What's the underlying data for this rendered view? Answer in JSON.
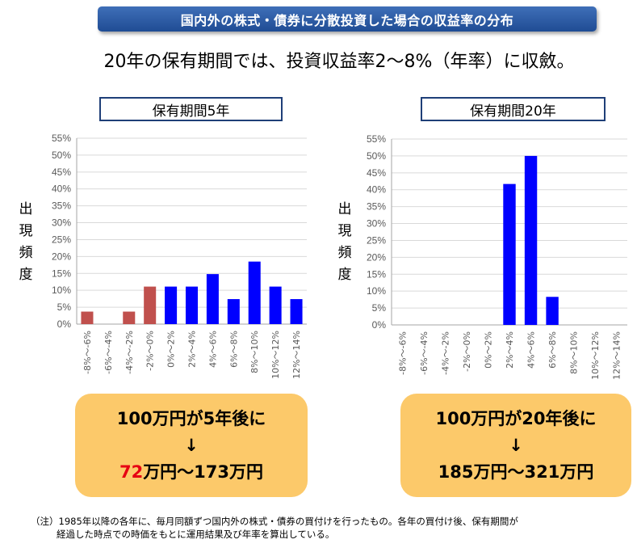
{
  "banner": "国内外の株式・債券に分散投資した場合の収益率の分布",
  "subtitle": "20年の保有期間では、投資収益率2～8%（年率）に収斂。",
  "ylabel_chars": [
    "出",
    "現",
    "頻",
    "度"
  ],
  "panels": {
    "left": {
      "title": "保有期間5年",
      "result_line1": "100万円が5年後に",
      "arrow": "↓",
      "result_low": "72",
      "result_rest": "万円～173万円"
    },
    "right": {
      "title": "保有期間20年",
      "result_line1": "100万円が20年後に",
      "arrow": "↓",
      "result_line3": "185万円～321万円"
    }
  },
  "footnote": {
    "line1": "（注）1985年以降の各年に、毎月同額ずつ国内外の株式・債券の買付けを行ったもの。各年の買付け後、保有期間が",
    "line2": "経過した時点での時価をもとに運用結果及び年率を算出している。"
  },
  "colors": {
    "negative": "#c0504d",
    "positive": "#0000ff",
    "grid": "#d9d9d9",
    "result_box": "#fcc96a"
  },
  "chart_data": [
    {
      "type": "bar",
      "title": "保有期間5年",
      "ylabel": "出現頻度",
      "categories": [
        "-8%～-6%",
        "-6%～-4%",
        "-4%～-2%",
        "-2%～0%",
        "0%～2%",
        "2%～4%",
        "4%～6%",
        "6%～8%",
        "8%～10%",
        "10%～12%",
        "12%～14%"
      ],
      "values": [
        3.7,
        0,
        3.7,
        11.1,
        11.1,
        11.1,
        14.8,
        7.4,
        18.5,
        11.1,
        7.4
      ],
      "bar_colors": [
        "#c0504d",
        "#c0504d",
        "#c0504d",
        "#c0504d",
        "#0000ff",
        "#0000ff",
        "#0000ff",
        "#0000ff",
        "#0000ff",
        "#0000ff",
        "#0000ff"
      ],
      "yticks": [
        "0%",
        "5%",
        "10%",
        "15%",
        "20%",
        "25%",
        "30%",
        "35%",
        "40%",
        "45%",
        "50%",
        "55%"
      ],
      "ylim": [
        0,
        55
      ],
      "grid": true
    },
    {
      "type": "bar",
      "title": "保有期間20年",
      "ylabel": "出現頻度",
      "categories": [
        "-8%～-6%",
        "-6%～-4%",
        "-4%～-2%",
        "-2%～0%",
        "0%～2%",
        "2%～4%",
        "4%～6%",
        "6%～8%",
        "8%～10%",
        "10%～12%",
        "12%～14%"
      ],
      "values": [
        0,
        0,
        0,
        0,
        0,
        41.7,
        50.0,
        8.3,
        0,
        0,
        0
      ],
      "bar_colors": [
        "#0000ff",
        "#0000ff",
        "#0000ff",
        "#0000ff",
        "#0000ff",
        "#0000ff",
        "#0000ff",
        "#0000ff",
        "#0000ff",
        "#0000ff",
        "#0000ff"
      ],
      "yticks": [
        "0%",
        "5%",
        "10%",
        "15%",
        "20%",
        "25%",
        "30%",
        "35%",
        "40%",
        "45%",
        "50%",
        "55%"
      ],
      "ylim": [
        0,
        55
      ],
      "grid": true
    }
  ]
}
